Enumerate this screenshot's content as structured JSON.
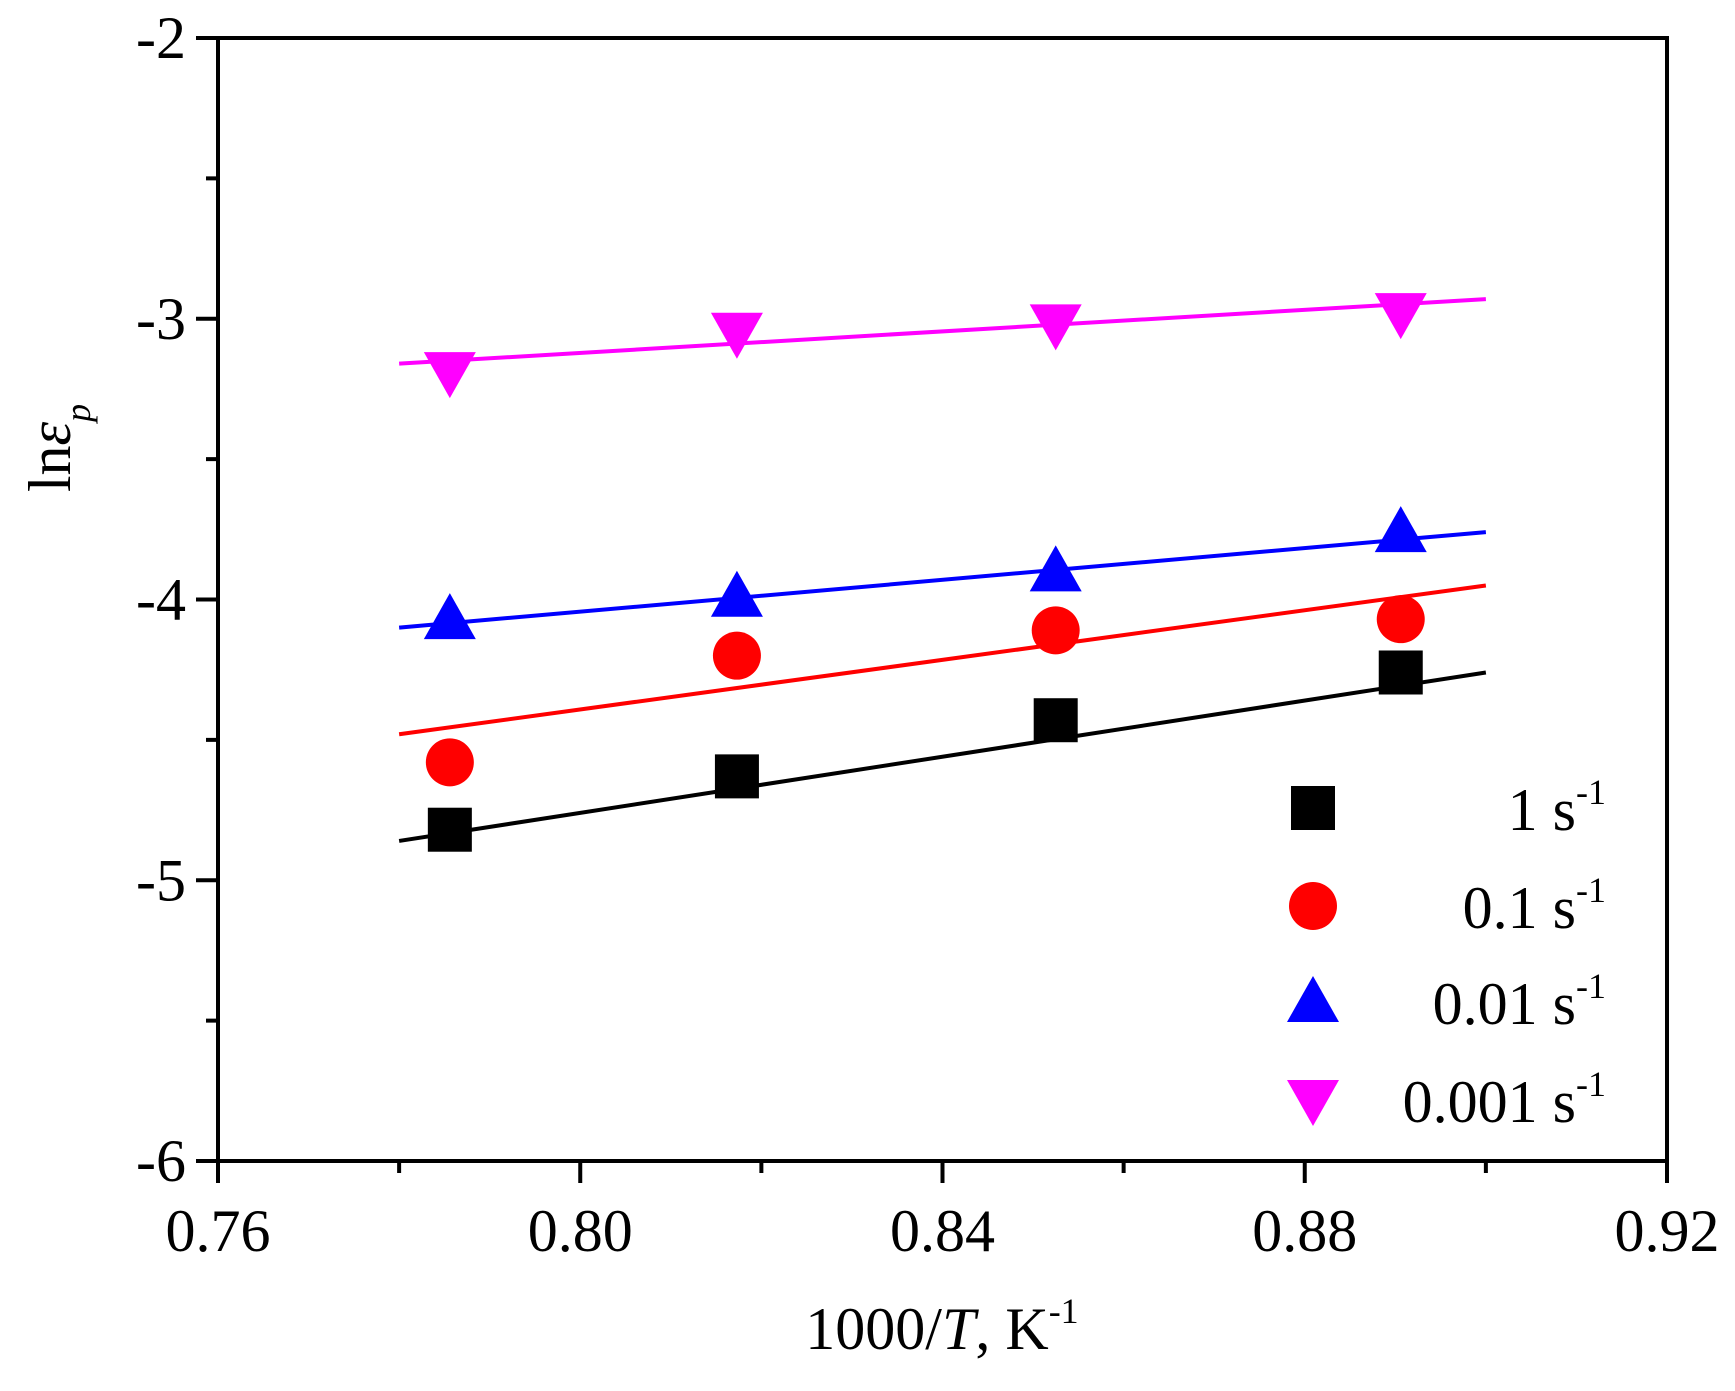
{
  "chart_data": {
    "type": "scatter",
    "title": "",
    "xlabel": {
      "prefix": "1000/",
      "italic": "T",
      "suffix": ", K",
      "sup": "-1"
    },
    "ylabel": {
      "prefix": "ln",
      "italic": "ε",
      "sub": "p"
    },
    "xlim": [
      0.76,
      0.92
    ],
    "ylim": [
      -6,
      -2
    ],
    "xticks": [
      0.76,
      0.8,
      0.84,
      0.88,
      0.92
    ],
    "xtick_labels": [
      "0.76",
      "0.80",
      "0.84",
      "0.88",
      "0.92"
    ],
    "xminor": [
      0.78,
      0.82,
      0.86,
      0.9
    ],
    "yticks": [
      -6,
      -5,
      -4,
      -3,
      -2
    ],
    "ytick_labels": [
      "-6",
      "-5",
      "-4",
      "-3",
      "-2"
    ],
    "yminor": [
      -5.5,
      -4.5,
      -3.5,
      -2.5
    ],
    "legend_position": "bottom-right",
    "series": [
      {
        "name": "1 s-1",
        "rate": "1",
        "unit": "s",
        "exp": "-1",
        "marker": "square",
        "color": "#000000",
        "x": [
          0.7856,
          0.8173,
          0.8525,
          0.8906
        ],
        "y": [
          -4.82,
          -4.63,
          -4.43,
          -4.26
        ],
        "fit": {
          "x": [
            0.78,
            0.9
          ],
          "y": [
            -4.86,
            -4.26
          ]
        }
      },
      {
        "name": "0.1 s-1",
        "rate": "0.1",
        "unit": "s",
        "exp": "-1",
        "marker": "circle",
        "color": "#ff0000",
        "x": [
          0.7856,
          0.8173,
          0.8525,
          0.8906
        ],
        "y": [
          -4.58,
          -4.2,
          -4.11,
          -4.07
        ],
        "fit": {
          "x": [
            0.78,
            0.9
          ],
          "y": [
            -4.48,
            -3.95
          ]
        }
      },
      {
        "name": "0.01 s-1",
        "rate": "0.01",
        "unit": "s",
        "exp": "-1",
        "marker": "triangle-up",
        "color": "#0000ff",
        "x": [
          0.7856,
          0.8173,
          0.8525,
          0.8906
        ],
        "y": [
          -4.07,
          -3.99,
          -3.9,
          -3.76
        ],
        "fit": {
          "x": [
            0.78,
            0.9
          ],
          "y": [
            -4.1,
            -3.76
          ]
        }
      },
      {
        "name": "0.001 s-1",
        "rate": "0.001",
        "unit": "s",
        "exp": "-1",
        "marker": "triangle-down",
        "color": "#ff00ff",
        "x": [
          0.7856,
          0.8173,
          0.8525,
          0.8906
        ],
        "y": [
          -3.19,
          -3.05,
          -3.02,
          -2.98
        ],
        "fit": {
          "x": [
            0.78,
            0.9
          ],
          "y": [
            -3.16,
            -2.93
          ]
        }
      }
    ]
  }
}
